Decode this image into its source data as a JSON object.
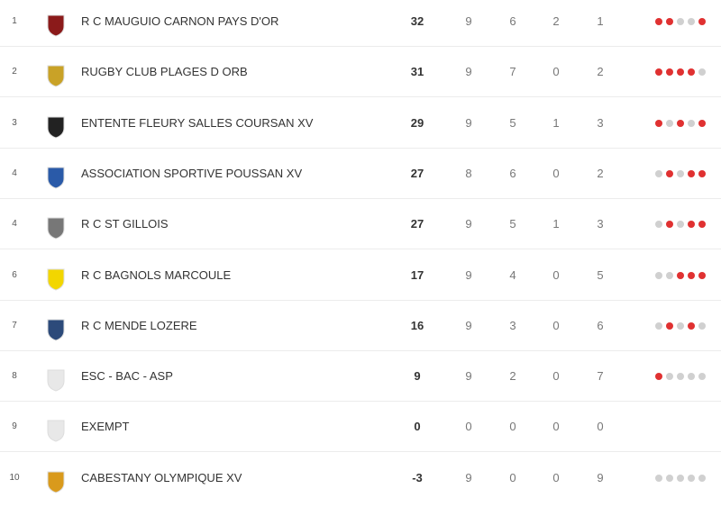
{
  "table": {
    "rows": [
      {
        "rank": 1,
        "team": "R C MAUGUIO CARNON PAYS D'OR",
        "points": 32,
        "played": 9,
        "won": 6,
        "drawn": 2,
        "lost": 1,
        "form": [
          "#e03131",
          "#e03131",
          "#d0d0d0",
          "#d0d0d0",
          "#e03131"
        ]
      },
      {
        "rank": 2,
        "team": "RUGBY CLUB PLAGES D ORB",
        "points": 31,
        "played": 9,
        "won": 7,
        "drawn": 0,
        "lost": 2,
        "form": [
          "#e03131",
          "#e03131",
          "#e03131",
          "#e03131",
          "#d0d0d0"
        ]
      },
      {
        "rank": 3,
        "team": "ENTENTE FLEURY SALLES COURSAN XV",
        "points": 29,
        "played": 9,
        "won": 5,
        "drawn": 1,
        "lost": 3,
        "form": [
          "#e03131",
          "#d0d0d0",
          "#e03131",
          "#d0d0d0",
          "#e03131"
        ]
      },
      {
        "rank": 4,
        "team": "ASSOCIATION SPORTIVE POUSSAN XV",
        "points": 27,
        "played": 8,
        "won": 6,
        "drawn": 0,
        "lost": 2,
        "form": [
          "#d0d0d0",
          "#e03131",
          "#d0d0d0",
          "#e03131",
          "#e03131"
        ]
      },
      {
        "rank": 4,
        "team": "R C ST GILLOIS",
        "points": 27,
        "played": 9,
        "won": 5,
        "drawn": 1,
        "lost": 3,
        "form": [
          "#d0d0d0",
          "#e03131",
          "#d0d0d0",
          "#e03131",
          "#e03131"
        ]
      },
      {
        "rank": 6,
        "team": "R C BAGNOLS MARCOULE",
        "points": 17,
        "played": 9,
        "won": 4,
        "drawn": 0,
        "lost": 5,
        "form": [
          "#d0d0d0",
          "#d0d0d0",
          "#e03131",
          "#e03131",
          "#e03131"
        ]
      },
      {
        "rank": 7,
        "team": "R C MENDE LOZERE",
        "points": 16,
        "played": 9,
        "won": 3,
        "drawn": 0,
        "lost": 6,
        "form": [
          "#d0d0d0",
          "#e03131",
          "#d0d0d0",
          "#e03131",
          "#d0d0d0"
        ]
      },
      {
        "rank": 8,
        "team": "ESC - BAC - ASP",
        "points": 9,
        "played": 9,
        "won": 2,
        "drawn": 0,
        "lost": 7,
        "form": [
          "#e03131",
          "#d0d0d0",
          "#d0d0d0",
          "#d0d0d0",
          "#d0d0d0"
        ]
      },
      {
        "rank": 9,
        "team": "EXEMPT",
        "points": 0,
        "played": 0,
        "won": 0,
        "drawn": 0,
        "lost": 0,
        "form": []
      },
      {
        "rank": 10,
        "team": "CABESTANY OLYMPIQUE XV",
        "points": -3,
        "played": 9,
        "won": 0,
        "drawn": 0,
        "lost": 9,
        "form": [
          "#d0d0d0",
          "#d0d0d0",
          "#d0d0d0",
          "#d0d0d0",
          "#d0d0d0"
        ]
      }
    ]
  }
}
